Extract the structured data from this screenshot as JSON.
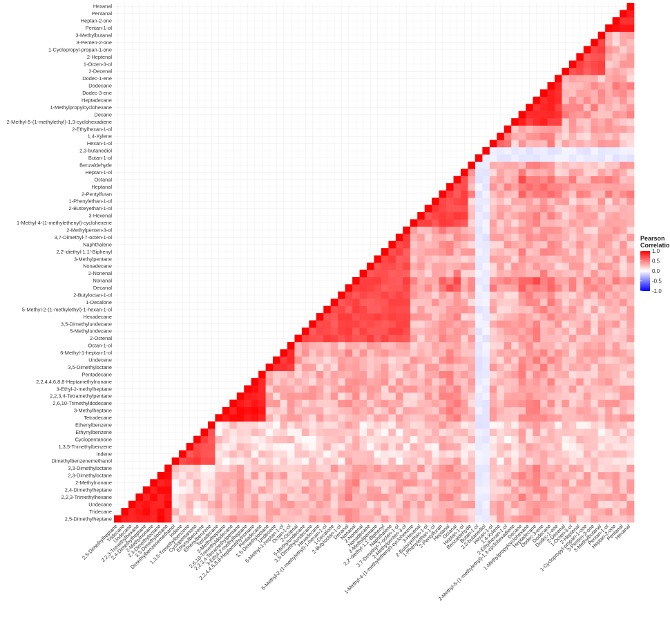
{
  "chart_data": {
    "type": "heatmap",
    "title": "",
    "xlabel": "",
    "ylabel": "",
    "variables": [
      "2,5-Dimethylheptane",
      "Tridecane",
      "Undecane",
      "2,2,3-Trimethylhexane",
      "2,4-Dimethylheptane",
      "2-Methylnonane",
      "2,3-Dimethyloctane",
      "3,3-Dimethyloctane",
      "Dimethylbenzenemethanol",
      "Indene",
      "1,3,5-Trimethylbenzene",
      "Cyclopentanone",
      "Ethynylbenzene",
      "Ethenylbenzene",
      "Tetradecane",
      "3-Methylheptane",
      "2,6,10-Trimethyldodecane",
      "2,2,3,4-Tetramethylpentane",
      "3-Ethyl-2-methylheptane",
      "2,2,4,4,6,8,8-Heptamethylnonane",
      "Pentadecane",
      "3,5-Dimethyloctane",
      "Undecene",
      "6-Methyl-1-heptan-1-ol",
      "Octan-1-ol",
      "2-Octenal",
      "5-Methylundecane",
      "3,5-Dimethylundecane",
      "Hexadecane",
      "5-Methyl-2-(1-methylethyl)-1-hexan-1-ol",
      "1-Decalone",
      "2-Butyloctan-1-ol",
      "Decanal",
      "Nonanal",
      "2-Nonenal",
      "Nonadecane",
      "3-Methylpentane",
      "2,2'-diethyl-1,1'-Biphenyl",
      "Naphthalene",
      "3,7-Dimethyl-7-octen-1-ol",
      "2-Methylpenten-3-ol",
      "1-Methyl-4-(1-methylethenyl)-cyclohexene",
      "3-Hexenal",
      "2-Butoxyethan-1-ol",
      "1-Phenylethan-1-ol",
      "2-Pentylfuran",
      "Heptanal",
      "Octanal",
      "Heptan-1-ol",
      "Benzaldehyde",
      "Butan-1-ol",
      "2,3-butanediol",
      "Hexan-1-ol",
      "1,4-Xylene",
      "2-Ethylhexan-1-ol",
      "2-Methyl-5-(1-methylethyl)-1,3-cyclohexadiene",
      "Decane",
      "1-Methylpropylcyclohexane",
      "Heptadecane",
      "Dodec-3-ene",
      "Dodecane",
      "Dodec-1-ene",
      "2-Decenal",
      "1-Octen-3-ol",
      "2-Heptenal",
      "1-Cyclopropyl-propan-1-one",
      "3-Penten-2-one",
      "3-Methylbutanal",
      "Pentan-1-ol",
      "Heptan-2-one",
      "Pentanal",
      "Hexanal"
    ],
    "blocks": [
      {
        "from": "2,5-Dimethylheptane",
        "to": "3,3-Dimethyloctane",
        "r": 0.92
      },
      {
        "from": "Dimethylbenzenemethanol",
        "to": "Ethenylbenzene",
        "r": 0.72
      },
      {
        "from": "Tetradecane",
        "to": "Pentadecane",
        "r": 0.9
      },
      {
        "from": "3,5-Dimethyloctane",
        "to": "Octan-1-ol",
        "r": 0.8
      },
      {
        "from": "2-Octenal",
        "to": "2-Methylpenten-3-ol",
        "r": 0.7
      },
      {
        "from": "1-Methyl-4-(1-methylethenyl)-cyclohexene",
        "to": "Heptan-1-ol",
        "r": 0.72
      },
      {
        "from": "Benzaldehyde",
        "to": "Benzaldehyde",
        "r": 0.6
      },
      {
        "from": "Butan-1-ol",
        "to": "2,3-butanediol",
        "r": -0.1
      },
      {
        "from": "Hexan-1-ol",
        "to": "2-Ethylhexan-1-ol",
        "r": 0.55
      },
      {
        "from": "2-Methyl-5-(1-methylethyl)-1,3-cyclohexadiene",
        "to": "Dodec-1-ene",
        "r": 0.82
      },
      {
        "from": "2-Decenal",
        "to": "3-Methylbutanal",
        "r": 0.7
      },
      {
        "from": "Pentan-1-ol",
        "to": "Hexanal",
        "r": 0.88
      }
    ],
    "base_r": 0.28,
    "low_r_vars": [
      "Butan-1-ol",
      "2,3-butanediol"
    ],
    "low_r": -0.08,
    "weak_cols": [
      "Dimethylbenzenemethanol",
      "Indene",
      "1,3,5-Trimethylbenzene",
      "Cyclopentanone",
      "Ethynylbenzene",
      "Ethenylbenzene"
    ],
    "strong_cols": [
      "Heptadecane",
      "Dodec-3-ene",
      "Dodecane",
      "Decane",
      "1-Methylpropylcyclohexane",
      "2-Pentylfuran",
      "Heptanal",
      "Octanal",
      "Decanal",
      "Nonanal"
    ],
    "legend": {
      "title_line1": "Pearson",
      "title_line2": "Correlation",
      "ticks": [
        "1.0",
        "0.5",
        "0.0",
        "-0.5",
        "-1.0"
      ],
      "tick_values": [
        1.0,
        0.5,
        0.0,
        -0.5,
        -1.0
      ],
      "range": [
        -1,
        1
      ],
      "position": "right"
    },
    "colors": {
      "high": "#ff0000",
      "mid": "#ffffff",
      "low": "#0000ff",
      "grid": "#ebebeb"
    },
    "grid": true
  }
}
